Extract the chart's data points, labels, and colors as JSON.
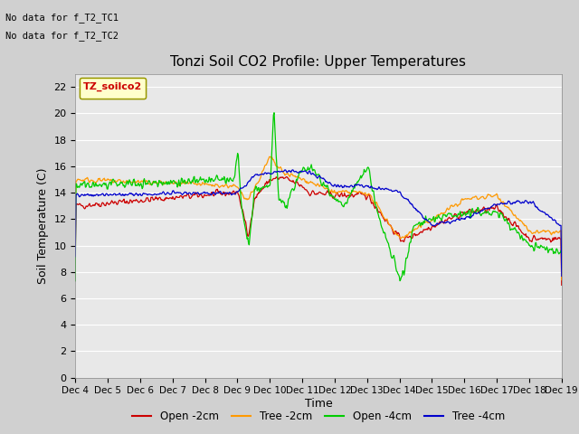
{
  "title": "Tonzi Soil CO2 Profile: Upper Temperatures",
  "ylabel": "Soil Temperature (C)",
  "xlabel": "Time",
  "top_left_text1": "No data for f_T2_TC1",
  "top_left_text2": "No data for f_T2_TC2",
  "legend_box_label": "TZ_soilco2",
  "ylim": [
    0,
    23
  ],
  "yticks": [
    0,
    2,
    4,
    6,
    8,
    10,
    12,
    14,
    16,
    18,
    20,
    22
  ],
  "xtick_labels": [
    "Dec 4",
    "Dec 5",
    "Dec 6",
    "Dec 7",
    "Dec 8",
    "Dec 9",
    "Dec 10",
    "Dec 11",
    "Dec 12",
    "Dec 13",
    "Dec 14",
    "Dec 15",
    "Dec 16",
    "Dec 17",
    "Dec 18",
    "Dec 19"
  ],
  "colors": {
    "open_2cm": "#cc0000",
    "tree_2cm": "#ff9900",
    "open_4cm": "#00cc00",
    "tree_4cm": "#0000cc"
  },
  "fig_bg": "#d0d0d0",
  "plot_bg": "#e8e8e8",
  "legend_labels": [
    "Open -2cm",
    "Tree -2cm",
    "Open -4cm",
    "Tree -4cm"
  ]
}
